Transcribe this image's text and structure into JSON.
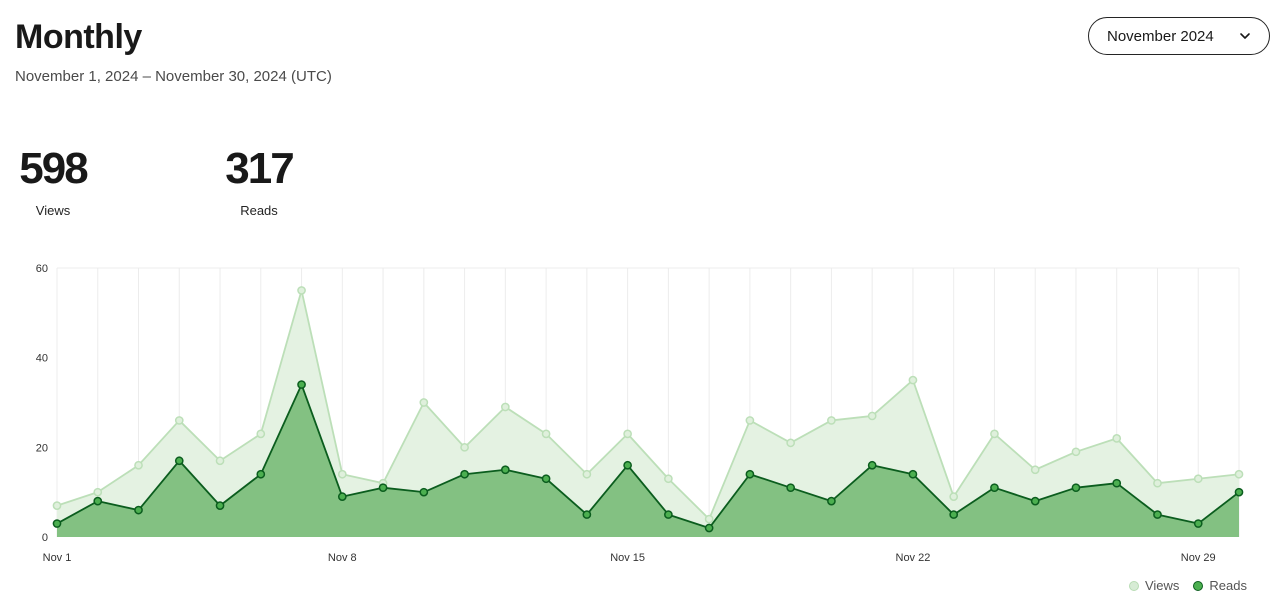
{
  "header": {
    "title": "Monthly",
    "date_range": "November 1, 2024 – November 30, 2024 (UTC)"
  },
  "month_selector": {
    "value": "November 2024",
    "icon": "chevron-down-icon"
  },
  "stats": {
    "views": {
      "value": "598",
      "label": "Views"
    },
    "reads": {
      "value": "317",
      "label": "Reads"
    }
  },
  "colors": {
    "views_fill": "#e4f2e2",
    "views_line": "#bcdfb8",
    "reads_fill": "#83c182",
    "reads_line": "#0b5d1e"
  },
  "chart_data": {
    "type": "area",
    "x": [
      "Nov 1",
      "Nov 2",
      "Nov 3",
      "Nov 4",
      "Nov 5",
      "Nov 6",
      "Nov 7",
      "Nov 8",
      "Nov 9",
      "Nov 10",
      "Nov 11",
      "Nov 12",
      "Nov 13",
      "Nov 14",
      "Nov 15",
      "Nov 16",
      "Nov 17",
      "Nov 18",
      "Nov 19",
      "Nov 20",
      "Nov 21",
      "Nov 22",
      "Nov 23",
      "Nov 24",
      "Nov 25",
      "Nov 26",
      "Nov 27",
      "Nov 28",
      "Nov 29",
      "Nov 30"
    ],
    "x_tick_labels": [
      "Nov 1",
      "Nov 8",
      "Nov 15",
      "Nov 22",
      "Nov 29"
    ],
    "y_ticks": [
      0,
      20,
      40,
      60
    ],
    "ylim": [
      0,
      60
    ],
    "grid": true,
    "legend_position": "bottom-right",
    "series": [
      {
        "name": "Views",
        "values": [
          7,
          10,
          16,
          26,
          17,
          23,
          55,
          14,
          12,
          30,
          20,
          29,
          23,
          14,
          23,
          13,
          4,
          26,
          21,
          26,
          27,
          35,
          9,
          23,
          15,
          19,
          22,
          12,
          13,
          14
        ]
      },
      {
        "name": "Reads",
        "values": [
          3,
          8,
          6,
          17,
          7,
          14,
          34,
          9,
          11,
          10,
          14,
          15,
          13,
          5,
          16,
          5,
          2,
          14,
          11,
          8,
          16,
          14,
          5,
          11,
          8,
          11,
          12,
          5,
          3,
          10
        ]
      }
    ]
  }
}
